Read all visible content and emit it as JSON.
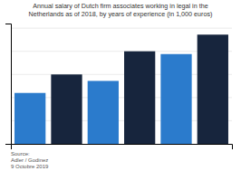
{
  "chart_data": {
    "type": "bar",
    "title": "Annual salary of Dutch firm associates working in legal in the\nNetherlands as of 2018, by years of experience (in 1,000 euros)",
    "source": "Source:\nAdler / Godinez\n9 Octobre 2019",
    "categories": [
      null,
      null,
      null,
      null,
      null,
      null
    ],
    "values": [
      55,
      75,
      68,
      100,
      97,
      118
    ],
    "colors": [
      "#2b7bcc",
      "#17253d",
      "#2b7bcc",
      "#17253d",
      "#2b7bcc",
      "#17253d"
    ],
    "ylim": [
      0,
      130
    ],
    "yticks": [
      25,
      50,
      75,
      100,
      125
    ],
    "grid": true,
    "tick_labels": false
  }
}
